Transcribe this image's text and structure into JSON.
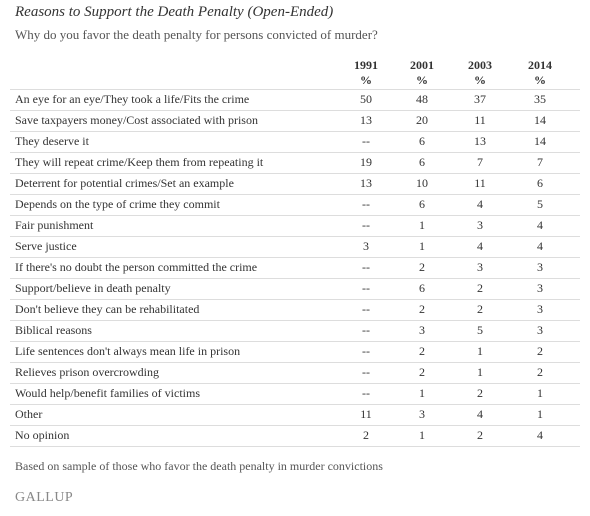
{
  "header": {
    "title": "Reasons to Support the Death Penalty (Open-Ended)",
    "subtitle": "Why do you favor the death penalty for persons convicted of murder?"
  },
  "table": {
    "columns": [
      {
        "year": "1991",
        "unit": "%"
      },
      {
        "year": "2001",
        "unit": "%"
      },
      {
        "year": "2003",
        "unit": "%"
      },
      {
        "year": "2014",
        "unit": "%"
      }
    ],
    "rows": [
      [
        "An eye for an eye/They took a life/Fits the crime",
        50,
        48,
        37,
        35
      ],
      [
        "Save taxpayers money/Cost associated with prison",
        13,
        20,
        11,
        14
      ],
      [
        "They deserve it",
        "--",
        6,
        13,
        14
      ],
      [
        "They will repeat crime/Keep them from repeating it",
        19,
        6,
        7,
        7
      ],
      [
        "Deterrent for potential crimes/Set an example",
        13,
        10,
        11,
        6
      ],
      [
        "Depends on the type of crime they commit",
        "--",
        6,
        4,
        5
      ],
      [
        "Fair punishment",
        "--",
        1,
        3,
        4
      ],
      [
        "Serve justice",
        3,
        1,
        4,
        4
      ],
      [
        "If there's no doubt the person committed the crime",
        "--",
        2,
        3,
        3
      ],
      [
        "Support/believe in death penalty",
        "--",
        6,
        2,
        3
      ],
      [
        "Don't believe they can be rehabilitated",
        "--",
        2,
        2,
        3
      ],
      [
        "Biblical reasons",
        "--",
        3,
        5,
        3
      ],
      [
        "Life sentences don't always mean life in prison",
        "--",
        2,
        1,
        2
      ],
      [
        "Relieves prison overcrowding",
        "--",
        2,
        1,
        2
      ],
      [
        "Would help/benefit families of victims",
        "--",
        1,
        2,
        1
      ],
      [
        "Other",
        11,
        3,
        4,
        1
      ],
      [
        "No opinion",
        2,
        1,
        2,
        4
      ]
    ]
  },
  "footer": {
    "note": "Based on sample of those who favor the death penalty in murder convictions",
    "brand": "GALLUP"
  }
}
